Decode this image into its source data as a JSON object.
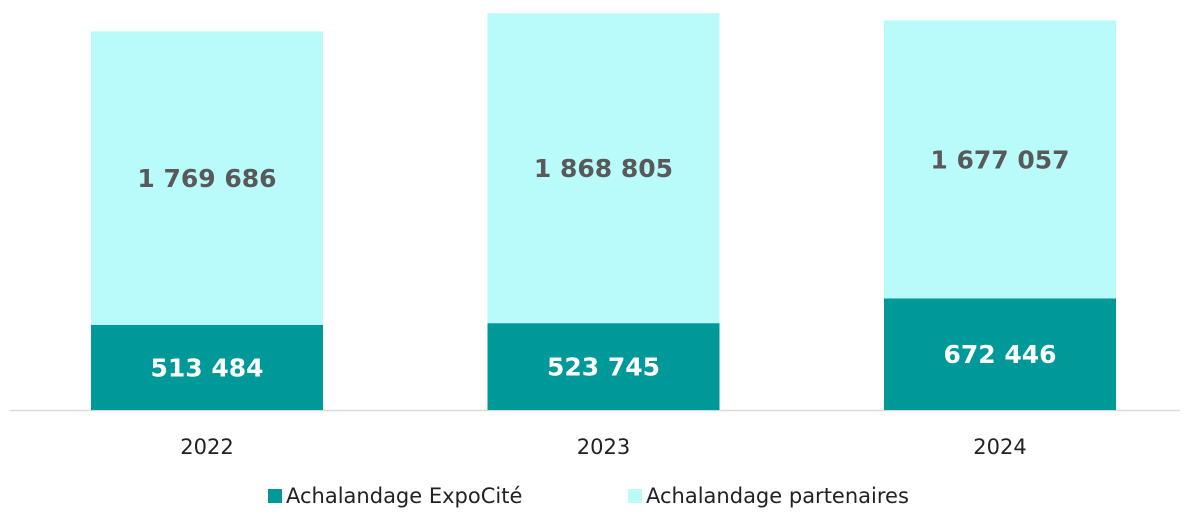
{
  "chart_data": {
    "type": "stacked_bar",
    "categories": [
      "2022",
      "2023",
      "2024"
    ],
    "ylim": [
      0,
      2400000
    ],
    "series": [
      {
        "name": "Achalandage ExpoCité",
        "color": "#00999a",
        "values": [
          513484,
          523745,
          672446
        ],
        "value_labels": [
          "513 484",
          "523 745",
          "672 446"
        ]
      },
      {
        "name": "Achalandage partenaires",
        "color": "#b9fafa",
        "values": [
          1769686,
          1868805,
          1677057
        ],
        "value_labels": [
          "1 769 686",
          "1 868 805",
          "1 677 057"
        ]
      }
    ]
  }
}
